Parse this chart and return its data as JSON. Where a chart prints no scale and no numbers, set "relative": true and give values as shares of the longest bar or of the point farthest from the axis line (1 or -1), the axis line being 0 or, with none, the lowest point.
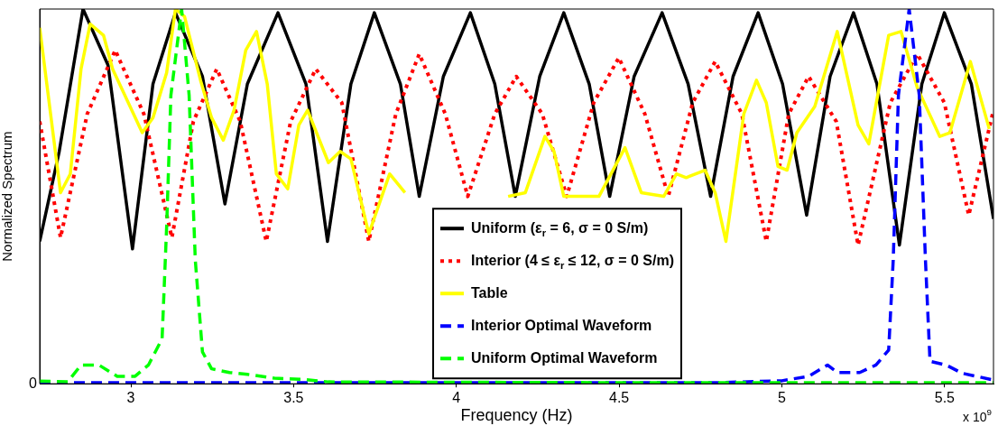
{
  "chart_data": {
    "type": "line",
    "xlabel": "Frequency (Hz)",
    "ylabel": "Normalized Spectrum",
    "relative": true,
    "xlim": [
      2.72,
      5.65
    ],
    "xticks": [
      3,
      3.5,
      4,
      4.5,
      5,
      5.5
    ],
    "grid": false,
    "legend": "bottom",
    "marker": "none",
    "annotations": [
      {
        "text": "0",
        "x": 2.72,
        "y": 0
      },
      "x 10$^{9}$"
    ],
    "series": [
      {
        "name": "Uniform (ε$_{r}$ = 6, σ = 0 S/m)",
        "color": "#000000",
        "line_style": "solid",
        "x": [
          2.72,
          2.78,
          2.853,
          2.93,
          3.005,
          3.068,
          3.137,
          3.22,
          3.289,
          3.358,
          3.452,
          3.538,
          3.604,
          3.676,
          3.748,
          3.828,
          3.886,
          3.96,
          4.043,
          4.118,
          4.181,
          4.256,
          4.33,
          4.408,
          4.471,
          4.546,
          4.632,
          4.712,
          4.781,
          4.85,
          4.927,
          5.002,
          5.076,
          5.148,
          5.22,
          5.292,
          5.361,
          5.43,
          5.499,
          5.582,
          5.65
        ],
        "values": [
          0.38,
          0.62,
          1.0,
          0.85,
          0.36,
          0.8,
          0.99,
          0.82,
          0.48,
          0.8,
          0.99,
          0.8,
          0.38,
          0.8,
          0.99,
          0.8,
          0.5,
          0.82,
          0.99,
          0.8,
          0.5,
          0.82,
          0.99,
          0.8,
          0.5,
          0.82,
          0.99,
          0.8,
          0.5,
          0.82,
          0.99,
          0.8,
          0.45,
          0.82,
          0.99,
          0.8,
          0.37,
          0.8,
          0.99,
          0.8,
          0.44
        ]
      },
      {
        "name": "Interior (4 ≤ ε$_{r}$ ≤ 12, σ = 0 S/m)",
        "color": "#ff0000",
        "line_style": "dotted",
        "x": [
          2.72,
          2.784,
          2.866,
          2.952,
          3.04,
          3.126,
          3.192,
          3.264,
          3.336,
          3.416,
          3.491,
          3.568,
          3.648,
          3.731,
          3.814,
          3.886,
          3.966,
          4.035,
          4.118,
          4.184,
          4.264,
          4.339,
          4.422,
          4.499,
          4.579,
          4.651,
          4.726,
          4.795,
          4.877,
          4.952,
          5.021,
          5.082,
          5.167,
          5.234,
          5.333,
          5.416,
          5.499,
          5.574,
          5.65
        ],
        "values": [
          0.7,
          0.39,
          0.72,
          0.89,
          0.72,
          0.39,
          0.7,
          0.84,
          0.7,
          0.38,
          0.7,
          0.84,
          0.75,
          0.38,
          0.72,
          0.88,
          0.72,
          0.5,
          0.72,
          0.82,
          0.72,
          0.5,
          0.75,
          0.87,
          0.72,
          0.5,
          0.75,
          0.86,
          0.72,
          0.38,
          0.72,
          0.82,
          0.7,
          0.37,
          0.75,
          0.88,
          0.75,
          0.45,
          0.73
        ]
      },
      {
        "name": "Table",
        "color": "#ffff00",
        "line_style": "solid",
        "x": [
          2.72,
          2.784,
          2.814,
          2.847,
          2.875,
          2.916,
          2.944,
          3.035,
          3.068,
          3.11,
          3.137,
          3.165,
          3.214,
          3.248,
          3.284,
          3.317,
          3.353,
          3.386,
          3.419,
          3.447,
          3.482,
          3.516,
          3.543,
          3.607,
          3.643,
          3.676,
          3.731,
          3.795,
          3.842,
          4.0,
          4.159,
          4.212,
          4.272,
          4.3,
          4.33,
          4.438,
          4.518,
          4.568,
          4.637,
          4.676,
          4.706,
          4.764,
          4.795,
          4.828,
          4.883,
          4.922,
          4.952,
          4.988,
          5.016,
          5.046,
          5.101,
          5.17,
          5.234,
          5.267,
          5.328,
          5.366,
          5.386,
          5.416,
          5.485,
          5.516,
          5.579,
          5.637
        ],
        "values": [
          0.95,
          0.51,
          0.56,
          0.84,
          0.96,
          0.93,
          0.84,
          0.67,
          0.71,
          0.83,
          1.0,
          0.98,
          0.81,
          0.71,
          0.65,
          0.73,
          0.89,
          0.94,
          0.8,
          0.56,
          0.52,
          0.69,
          0.73,
          0.59,
          0.62,
          0.6,
          0.4,
          0.56,
          0.51,
          null,
          0.5,
          0.51,
          0.66,
          0.62,
          0.5,
          0.5,
          0.63,
          0.51,
          0.5,
          0.56,
          0.55,
          0.57,
          0.51,
          0.38,
          0.72,
          0.81,
          0.75,
          0.58,
          0.57,
          0.67,
          0.74,
          0.94,
          0.69,
          0.64,
          0.93,
          0.94,
          0.88,
          0.79,
          0.66,
          0.67,
          0.86,
          0.68
        ]
      },
      {
        "name": "Interior Optimal Waveform",
        "color": "#0000ff",
        "line_style": "dashed",
        "x": [
          2.72,
          4.8,
          5.0,
          5.082,
          5.14,
          5.17,
          5.239,
          5.289,
          5.328,
          5.342,
          5.358,
          5.391,
          5.422,
          5.441,
          5.455,
          5.505,
          5.554,
          5.65
        ],
        "values": [
          0.003,
          0.003,
          0.008,
          0.02,
          0.05,
          0.03,
          0.03,
          0.05,
          0.09,
          0.33,
          0.77,
          1.0,
          0.77,
          0.33,
          0.06,
          0.05,
          0.028,
          0.01
        ]
      },
      {
        "name": "Uniform Optimal Waveform",
        "color": "#00ff00",
        "line_style": "dashed",
        "x": [
          2.72,
          2.806,
          2.847,
          2.902,
          2.958,
          3.013,
          3.054,
          3.096,
          3.11,
          3.123,
          3.156,
          3.179,
          3.198,
          3.22,
          3.248,
          3.303,
          3.358,
          3.441,
          3.524,
          3.607,
          4.5,
          5.65
        ],
        "values": [
          0.007,
          0.005,
          0.05,
          0.05,
          0.02,
          0.02,
          0.05,
          0.12,
          0.42,
          0.77,
          1.0,
          0.77,
          0.33,
          0.085,
          0.04,
          0.03,
          0.025,
          0.015,
          0.012,
          0.005,
          0.003,
          0.003
        ]
      }
    ]
  }
}
